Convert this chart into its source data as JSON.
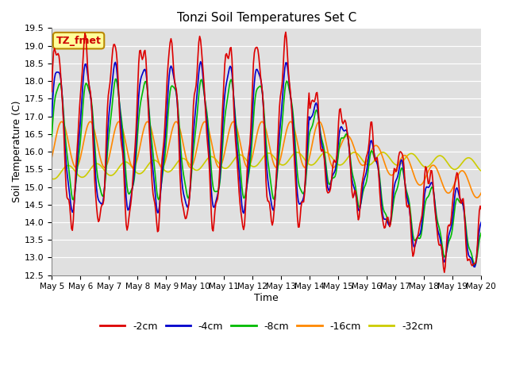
{
  "title": "Tonzi Soil Temperatures Set C",
  "xlabel": "Time",
  "ylabel": "Soil Temperature (C)",
  "ylim": [
    12.5,
    19.5
  ],
  "annotation": "TZ_fmet",
  "annotation_color": "#cc0000",
  "annotation_bg": "#ffff99",
  "annotation_border": "#bb8800",
  "legend_entries": [
    "-2cm",
    "-4cm",
    "-8cm",
    "-16cm",
    "-32cm"
  ],
  "line_colors": [
    "#dd0000",
    "#0000cc",
    "#00bb00",
    "#ff8800",
    "#cccc00"
  ],
  "x_tick_labels": [
    "May 5",
    "May 6",
    "May 7",
    "May 8",
    "May 9",
    "May 10",
    "May 11",
    "May 12",
    "May 13",
    "May 14",
    "May 15",
    "May 16",
    "May 17",
    "May 18",
    "May 19",
    "May 20"
  ]
}
